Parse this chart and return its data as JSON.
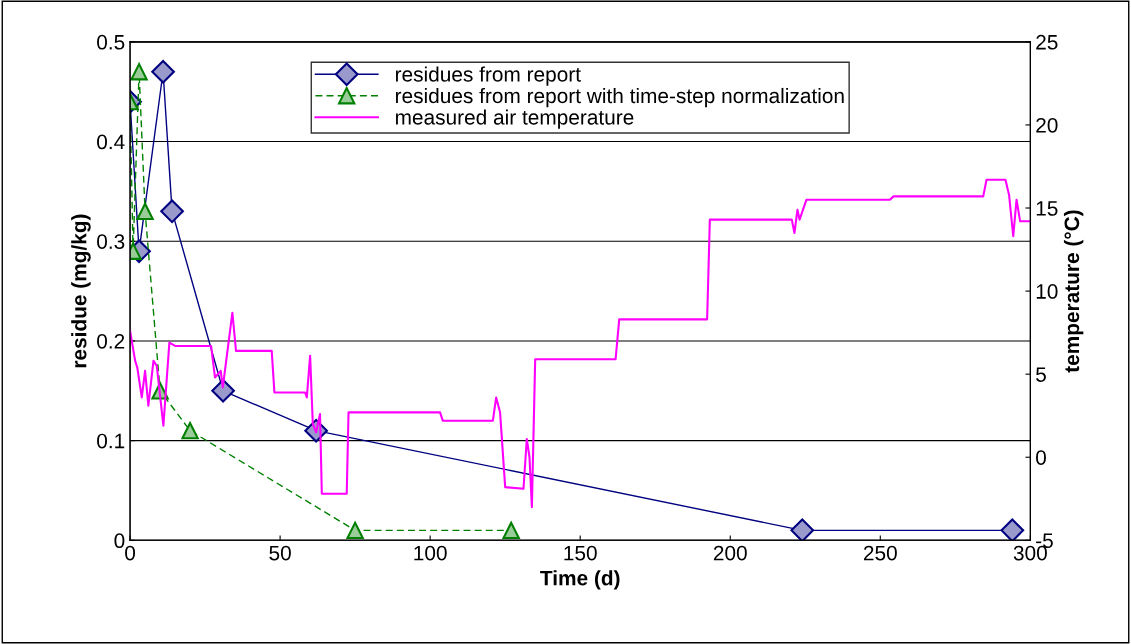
{
  "chart_data": {
    "type": "line",
    "xlabel": "Time (d)",
    "ylabel": "residue (mg/kg)",
    "y2label": "temperature (°C)",
    "xlim": [
      0,
      300
    ],
    "xticks": [
      0,
      50,
      100,
      150,
      200,
      250,
      300
    ],
    "ylim": [
      0,
      0.5
    ],
    "yticks": [
      0,
      0.1,
      0.2,
      0.3,
      0.4,
      0.5
    ],
    "y2lim": [
      -5,
      25
    ],
    "y2ticks": [
      -5,
      0,
      5,
      10,
      15,
      20,
      25
    ],
    "grid": "y",
    "legend": "top",
    "series": [
      {
        "name": "residues from report",
        "color": "#000080",
        "marker": "diamond",
        "line_style": "solid",
        "x": [
          0,
          3,
          11,
          14,
          31,
          62,
          224,
          294
        ],
        "values": [
          0.44,
          0.29,
          0.47,
          0.33,
          0.15,
          0.11,
          0.01,
          0.01
        ]
      },
      {
        "name": "residues from report with time-step normalization",
        "color": "#008000",
        "marker": "triangle",
        "line_style": "dashed",
        "x": [
          0,
          1,
          3,
          5,
          10,
          20,
          75,
          127
        ],
        "values": [
          0.44,
          0.29,
          0.47,
          0.33,
          0.15,
          0.11,
          0.01,
          0.01
        ]
      },
      {
        "name": "measured air temperature",
        "color": "#ff00ff",
        "marker": "none",
        "line_style": "solid",
        "axis": "y2",
        "x": [
          0,
          1.7,
          2.4,
          3.9,
          5,
          6.1,
          7.8,
          8.9,
          11.1,
          13.1,
          15,
          27,
          28.3,
          30.2,
          30.9,
          34.1,
          35.3,
          47.2,
          48.1,
          58.3,
          58.9,
          60,
          60.9,
          62,
          63.3,
          63.9,
          72.2,
          72.8,
          103.3,
          104.2,
          120.9,
          122,
          123.3,
          125,
          131.1,
          132.2,
          133.1,
          133.9,
          135,
          161.8,
          163,
          192.3,
          193.2,
          220.5,
          221.4,
          222.4,
          223.1,
          225.4,
          253.2,
          254.4,
          284.3,
          285.4,
          291.7,
          292.9,
          294.3,
          295.4,
          296.6,
          300
        ],
        "values": [
          7.6,
          5.8,
          5.4,
          3.6,
          5.2,
          3.1,
          5.8,
          5.5,
          1.9,
          6.9,
          6.7,
          6.7,
          4.8,
          5.2,
          4.2,
          8.7,
          6.4,
          6.4,
          3.9,
          3.9,
          3.6,
          6.1,
          2.0,
          1.5,
          2.6,
          -2.2,
          -2.2,
          2.7,
          2.7,
          2.2,
          2.2,
          3.6,
          2.7,
          -1.8,
          -1.9,
          1.1,
          0.0,
          -3.0,
          5.9,
          5.9,
          8.3,
          8.3,
          14.3,
          14.3,
          13.5,
          14.9,
          14.3,
          15.5,
          15.5,
          15.7,
          15.7,
          16.7,
          16.7,
          15.8,
          13.3,
          15.5,
          14.2,
          14.2
        ]
      }
    ]
  }
}
